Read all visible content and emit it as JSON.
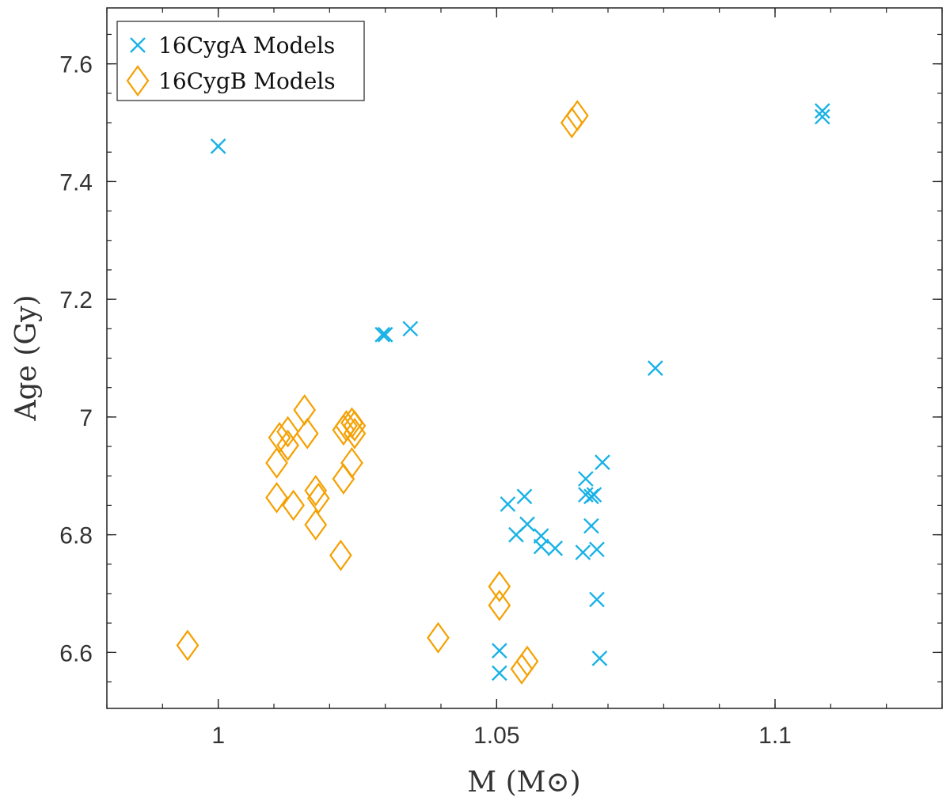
{
  "chart_data": {
    "type": "scatter",
    "xlabel": "M (M⊙)",
    "ylabel": "Age (Gy)",
    "xlim": [
      0.98,
      1.13
    ],
    "ylim": [
      6.505,
      7.695
    ],
    "x_ticks": [
      1,
      1.05,
      1.1
    ],
    "x_tick_labels": [
      "1",
      "1.05",
      "1.1"
    ],
    "x_minor_step": 0.01,
    "y_ticks": [
      6.6,
      6.8,
      7.0,
      7.2,
      7.4,
      7.6
    ],
    "y_tick_labels": [
      "6.6",
      "6.8",
      "7",
      "7.2",
      "7.4",
      "7.6"
    ],
    "y_minor_step": 0.05,
    "grid": false,
    "legend_position": "top-left",
    "series": [
      {
        "name": "16CygA Models",
        "marker": "x",
        "color": "#1ab2e6",
        "points": [
          [
            1.0,
            7.46
          ],
          [
            1.1085,
            7.52
          ],
          [
            1.1085,
            7.51
          ],
          [
            1.0295,
            7.14
          ],
          [
            1.03,
            7.14
          ],
          [
            1.0345,
            7.15
          ],
          [
            1.0785,
            7.083
          ],
          [
            1.052,
            6.852
          ],
          [
            1.055,
            6.865
          ],
          [
            1.0535,
            6.8
          ],
          [
            1.0555,
            6.818
          ],
          [
            1.058,
            6.798
          ],
          [
            1.058,
            6.78
          ],
          [
            1.0605,
            6.777
          ],
          [
            1.066,
            6.895
          ],
          [
            1.066,
            6.868
          ],
          [
            1.067,
            6.865
          ],
          [
            1.0675,
            6.868
          ],
          [
            1.069,
            6.923
          ],
          [
            1.067,
            6.815
          ],
          [
            1.0655,
            6.77
          ],
          [
            1.068,
            6.775
          ],
          [
            1.068,
            6.69
          ],
          [
            1.0505,
            6.603
          ],
          [
            1.0505,
            6.565
          ],
          [
            1.0685,
            6.59
          ]
        ]
      },
      {
        "name": "16CygB Models",
        "marker": "diamond",
        "color": "#f5a000",
        "points": [
          [
            0.9945,
            6.612
          ],
          [
            1.0105,
            6.922
          ],
          [
            1.011,
            6.965
          ],
          [
            1.0125,
            6.975
          ],
          [
            1.0125,
            6.952
          ],
          [
            1.0105,
            6.863
          ],
          [
            1.0135,
            6.85
          ],
          [
            1.0155,
            7.012
          ],
          [
            1.016,
            6.972
          ],
          [
            1.0175,
            6.875
          ],
          [
            1.018,
            6.862
          ],
          [
            1.0175,
            6.817
          ],
          [
            1.022,
            6.765
          ],
          [
            1.0225,
            6.895
          ],
          [
            1.024,
            6.922
          ],
          [
            1.0225,
            6.978
          ],
          [
            1.023,
            6.985
          ],
          [
            1.024,
            6.99
          ],
          [
            1.0245,
            6.985
          ],
          [
            1.0245,
            6.972
          ],
          [
            1.0395,
            6.625
          ],
          [
            1.0505,
            6.712
          ],
          [
            1.0505,
            6.68
          ],
          [
            1.0545,
            6.572
          ],
          [
            1.0555,
            6.585
          ],
          [
            1.0635,
            7.5
          ],
          [
            1.0645,
            7.512
          ]
        ]
      }
    ]
  }
}
